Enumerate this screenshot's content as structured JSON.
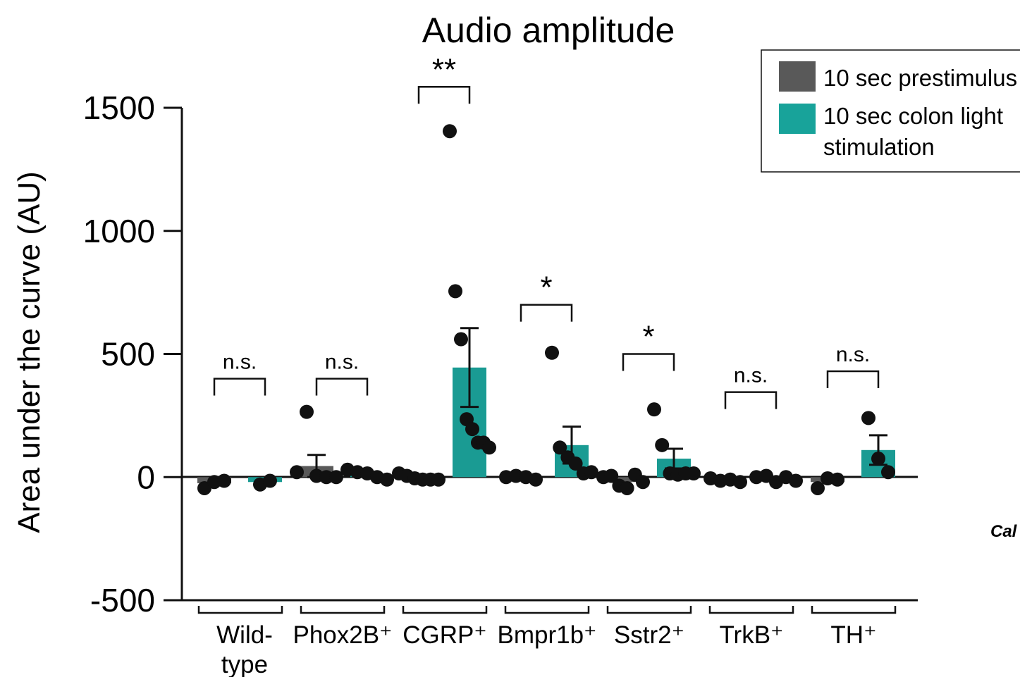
{
  "chart_data": {
    "type": "bar",
    "title": "Audio amplitude",
    "ylabel": "Area under the curve (AU)",
    "xlabel": "",
    "ylim": [
      -500,
      1500
    ],
    "yticks": [
      1500,
      1000,
      500,
      0,
      -500
    ],
    "ytick_labels": [
      "1500",
      "1000",
      "500",
      "0",
      "-500"
    ],
    "categories": [
      "Wild-type",
      "Phox2B⁺",
      "CGRP⁺",
      "Bmpr1b⁺",
      "Sstr2⁺",
      "TrkB⁺",
      "TH⁺"
    ],
    "category_lines": [
      [
        "Wild-",
        "type"
      ],
      [
        "Phox2B⁺"
      ],
      [
        "CGRP⁺"
      ],
      [
        "Bmpr1b⁺"
      ],
      [
        "Sstr2⁺"
      ],
      [
        "TrkB⁺"
      ],
      [
        "TH⁺"
      ]
    ],
    "legend": {
      "position": "top-right",
      "entries": [
        {
          "label_lines": [
            "10 sec prestimulus"
          ],
          "color": "#595959"
        },
        {
          "label_lines": [
            "10 sec colon light",
            "stimulation"
          ],
          "color": "#18a39a"
        }
      ]
    },
    "series": [
      {
        "name": "10 sec prestimulus",
        "color": "#595959",
        "values": [
          -25,
          45,
          -5,
          -5,
          -20,
          -10,
          -20
        ],
        "error": [
          null,
          45,
          null,
          null,
          null,
          null,
          null
        ],
        "points": [
          [
            -45,
            -20,
            -15
          ],
          [
            20,
            265,
            5,
            0,
            0
          ],
          [
            15,
            5,
            -5,
            -10,
            -10,
            -10
          ],
          [
            0,
            5,
            0,
            -10
          ],
          [
            0,
            5,
            -35,
            -45,
            10,
            -20
          ],
          [
            -5,
            -15,
            -10,
            -20
          ],
          [
            -45,
            -5,
            -10
          ]
        ]
      },
      {
        "name": "10 sec colon light stimulation",
        "color": "#1a9b93",
        "values": [
          -20,
          15,
          445,
          130,
          75,
          -5,
          110
        ],
        "error": [
          null,
          null,
          160,
          75,
          40,
          null,
          60
        ],
        "points": [
          [
            -30,
            -15
          ],
          [
            30,
            20,
            15,
            0,
            -10
          ],
          [
            1405,
            755,
            560,
            235,
            195,
            140,
            140,
            120
          ],
          [
            505,
            120,
            80,
            55,
            15,
            20
          ],
          [
            275,
            130,
            15,
            10,
            15,
            15
          ],
          [
            0,
            5,
            -20,
            0,
            -15
          ],
          [
            240,
            75,
            20
          ]
        ]
      }
    ],
    "significance": [
      "n.s.",
      "n.s.",
      "**",
      "*",
      "*",
      "n.s.",
      "n.s."
    ],
    "sig_values": [
      400,
      400,
      1585,
      700,
      500,
      345,
      430
    ],
    "corner_fragment": "Cal"
  }
}
